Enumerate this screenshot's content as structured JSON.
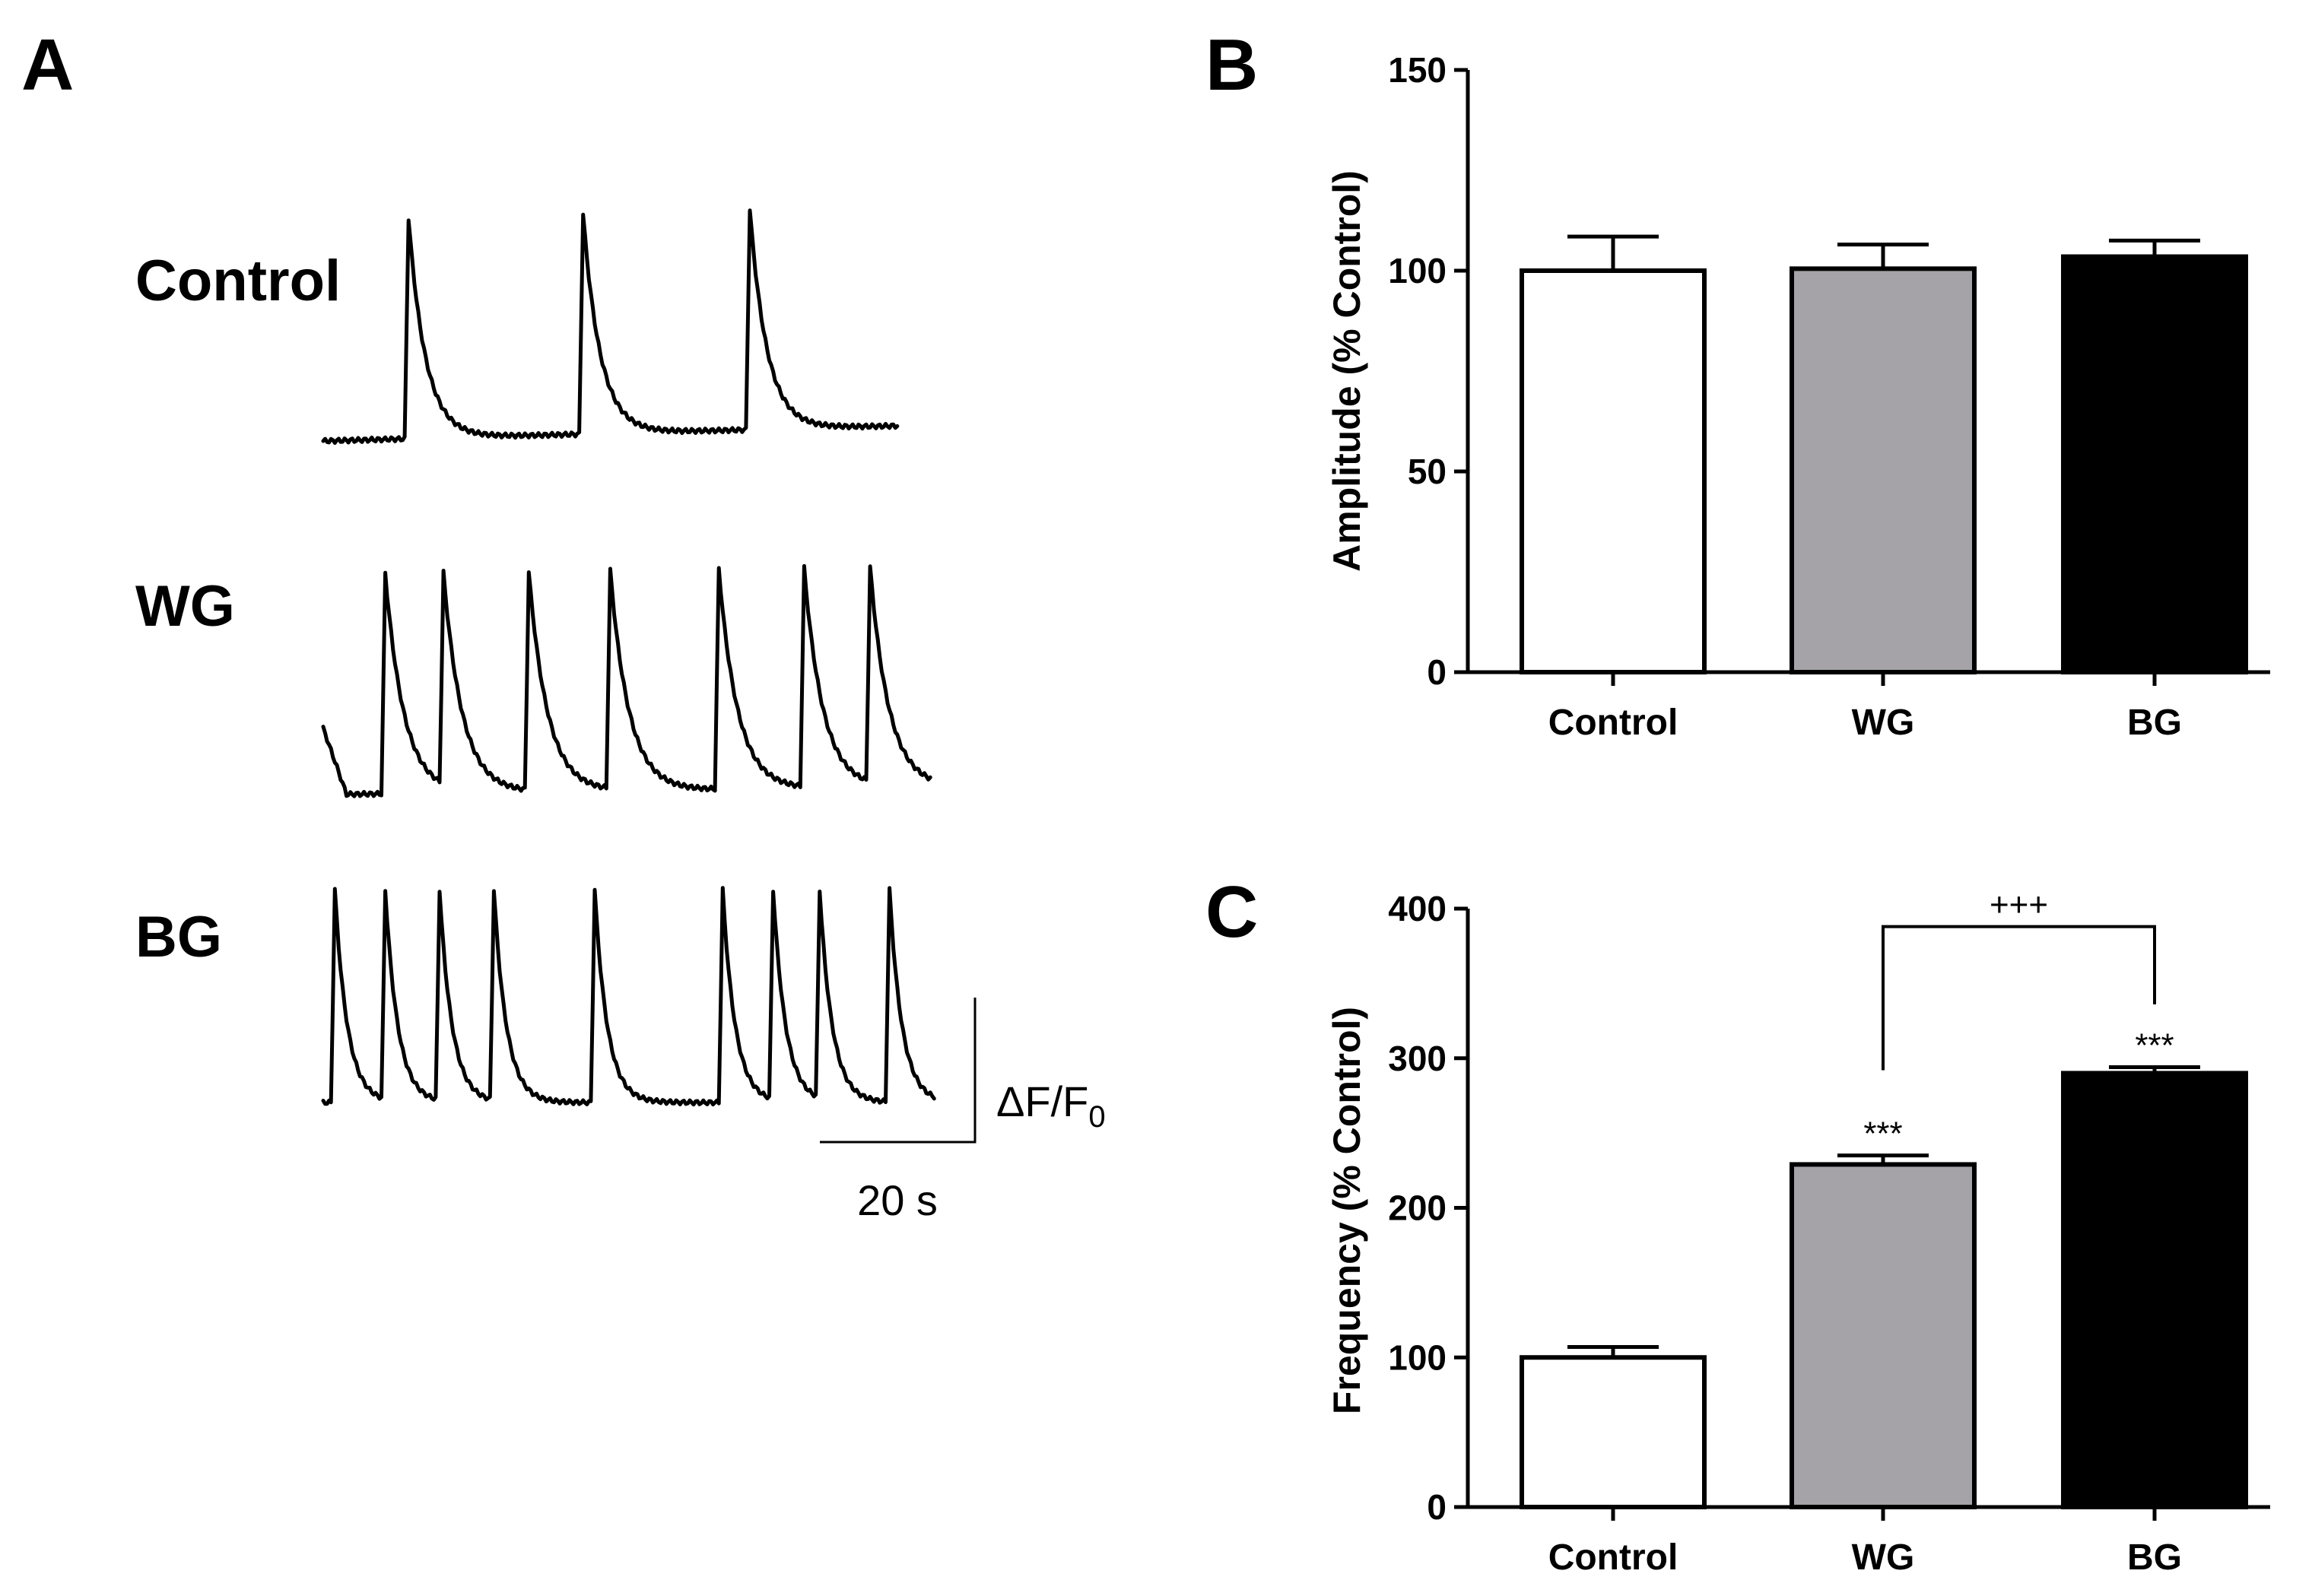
{
  "chart_data": [
    {
      "panel": "A",
      "type": "line",
      "traces": [
        {
          "name": "Control",
          "peak_times_s": [
            11,
            33.5,
            55
          ]
        },
        {
          "name": "WG",
          "peak_times_s": [
            8,
            15.5,
            26.5,
            37,
            51,
            62,
            70.5
          ]
        },
        {
          "name": "BG",
          "peak_times_s": [
            1.5,
            8,
            15,
            22,
            35,
            51.5,
            58,
            64,
            73
          ]
        }
      ],
      "scale_bar": {
        "y_label_main": "ΔF/F",
        "y_label_sub": "0",
        "x_label": "20 s"
      }
    },
    {
      "panel": "B",
      "type": "bar",
      "categories": [
        "Control",
        "WG",
        "BG"
      ],
      "values": [
        100,
        100.5,
        103.5
      ],
      "errors": [
        8.5,
        6,
        4
      ],
      "colors": [
        "#ffffff",
        "#a5a3a8",
        "#000000"
      ],
      "ylabel": "Amplitude (% Control)",
      "ylim": [
        0,
        150
      ],
      "yticks": [
        0,
        50,
        100,
        150
      ]
    },
    {
      "panel": "C",
      "type": "bar",
      "categories": [
        "Control",
        "WG",
        "BG"
      ],
      "values": [
        100,
        229,
        290
      ],
      "errors": [
        7,
        6,
        4
      ],
      "colors": [
        "#ffffff",
        "#a5a3a8",
        "#000000"
      ],
      "ylabel": "Frequency (% Control)",
      "ylim": [
        0,
        400
      ],
      "yticks": [
        0,
        100,
        200,
        300,
        400
      ],
      "bar_annotations": [
        "",
        "***",
        "***"
      ],
      "bracket": {
        "from": "WG",
        "to": "BG",
        "label": "+++"
      }
    }
  ]
}
